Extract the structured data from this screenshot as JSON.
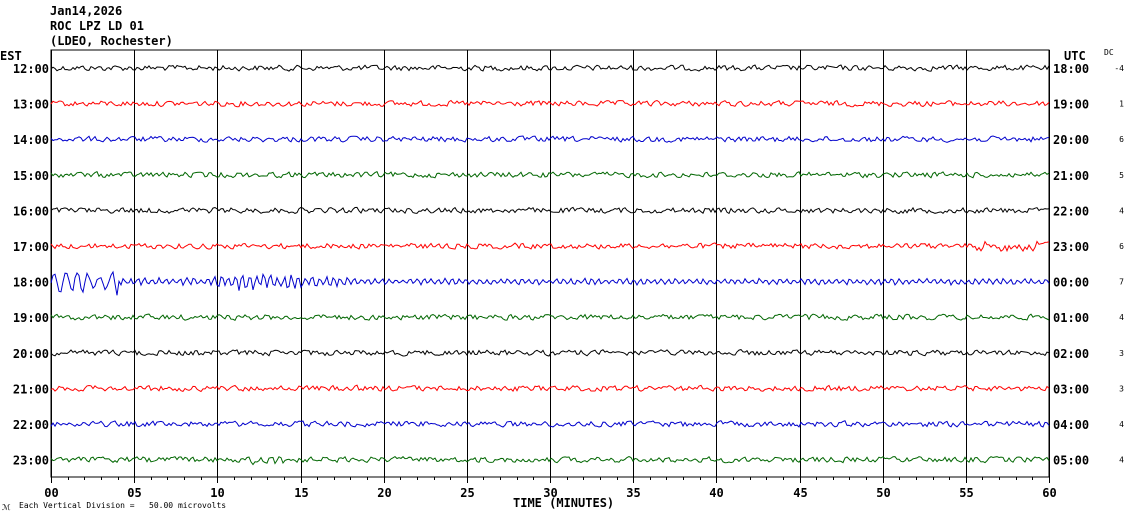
{
  "header": {
    "date": "Jan14,2026",
    "station": "ROC LPZ LD 01",
    "location": "(LDEO, Rochester)"
  },
  "left_zone": "EST",
  "right_zone": "UTC",
  "dc_header": "DC",
  "footer": {
    "scale_note": "Each Vertical Division =   50.00 microvolts",
    "corner_mark": "ℳ"
  },
  "colors": {
    "black": "#000000",
    "red": "#ff0000",
    "blue": "#0000cc",
    "green": "#006600"
  },
  "chart_data": {
    "type": "line",
    "title": "",
    "xlabel": "TIME (MINUTES)",
    "ylabel": "",
    "xlim": [
      0,
      60
    ],
    "x_ticks": [
      "00",
      "05",
      "10",
      "15",
      "20",
      "25",
      "30",
      "35",
      "40",
      "45",
      "50",
      "55",
      "60"
    ],
    "grid": true,
    "traces": [
      {
        "est": "12:00",
        "utc": "18:00",
        "dc": "-4",
        "color": "black"
      },
      {
        "est": "13:00",
        "utc": "19:00",
        "dc": "1",
        "color": "red"
      },
      {
        "est": "14:00",
        "utc": "20:00",
        "dc": "6",
        "color": "blue"
      },
      {
        "est": "15:00",
        "utc": "21:00",
        "dc": "5",
        "color": "green"
      },
      {
        "est": "16:00",
        "utc": "22:00",
        "dc": "4",
        "color": "black"
      },
      {
        "est": "17:00",
        "utc": "23:00",
        "dc": "6",
        "color": "red"
      },
      {
        "est": "18:00",
        "utc": "00:00",
        "dc": "7",
        "color": "blue"
      },
      {
        "est": "19:00",
        "utc": "01:00",
        "dc": "4",
        "color": "green"
      },
      {
        "est": "20:00",
        "utc": "02:00",
        "dc": "3",
        "color": "black"
      },
      {
        "est": "21:00",
        "utc": "03:00",
        "dc": "3",
        "color": "red"
      },
      {
        "est": "22:00",
        "utc": "04:00",
        "dc": "4",
        "color": "blue"
      },
      {
        "est": "23:00",
        "utc": "05:00",
        "dc": "4",
        "color": "green"
      }
    ]
  }
}
